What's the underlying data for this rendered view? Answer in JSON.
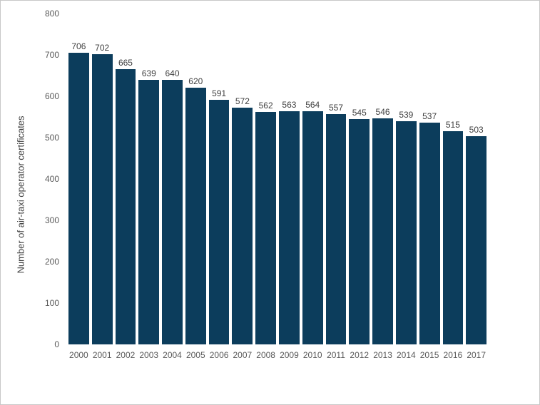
{
  "chart_data": {
    "type": "bar",
    "title": "",
    "xlabel": "",
    "ylabel": "Number of air-taxi operator certificates",
    "categories": [
      "2000",
      "2001",
      "2002",
      "2003",
      "2004",
      "2005",
      "2006",
      "2007",
      "2008",
      "2009",
      "2010",
      "2011",
      "2012",
      "2013",
      "2014",
      "2015",
      "2016",
      "2017"
    ],
    "values": [
      706,
      702,
      665,
      639,
      640,
      620,
      591,
      572,
      562,
      563,
      564,
      557,
      545,
      546,
      539,
      537,
      515,
      503
    ],
    "ylim": [
      0,
      800
    ],
    "yticks": [
      0,
      100,
      200,
      300,
      400,
      500,
      600,
      700,
      800
    ],
    "grid": "off",
    "legend": "none",
    "data_labels": "above-bars",
    "colors": {
      "bar": "#0c3d5c",
      "value_label": "#404040",
      "tick_label": "#595959",
      "axis_title": "#404040",
      "background": "#ffffff",
      "frame_border": "#c8c8c8"
    }
  }
}
